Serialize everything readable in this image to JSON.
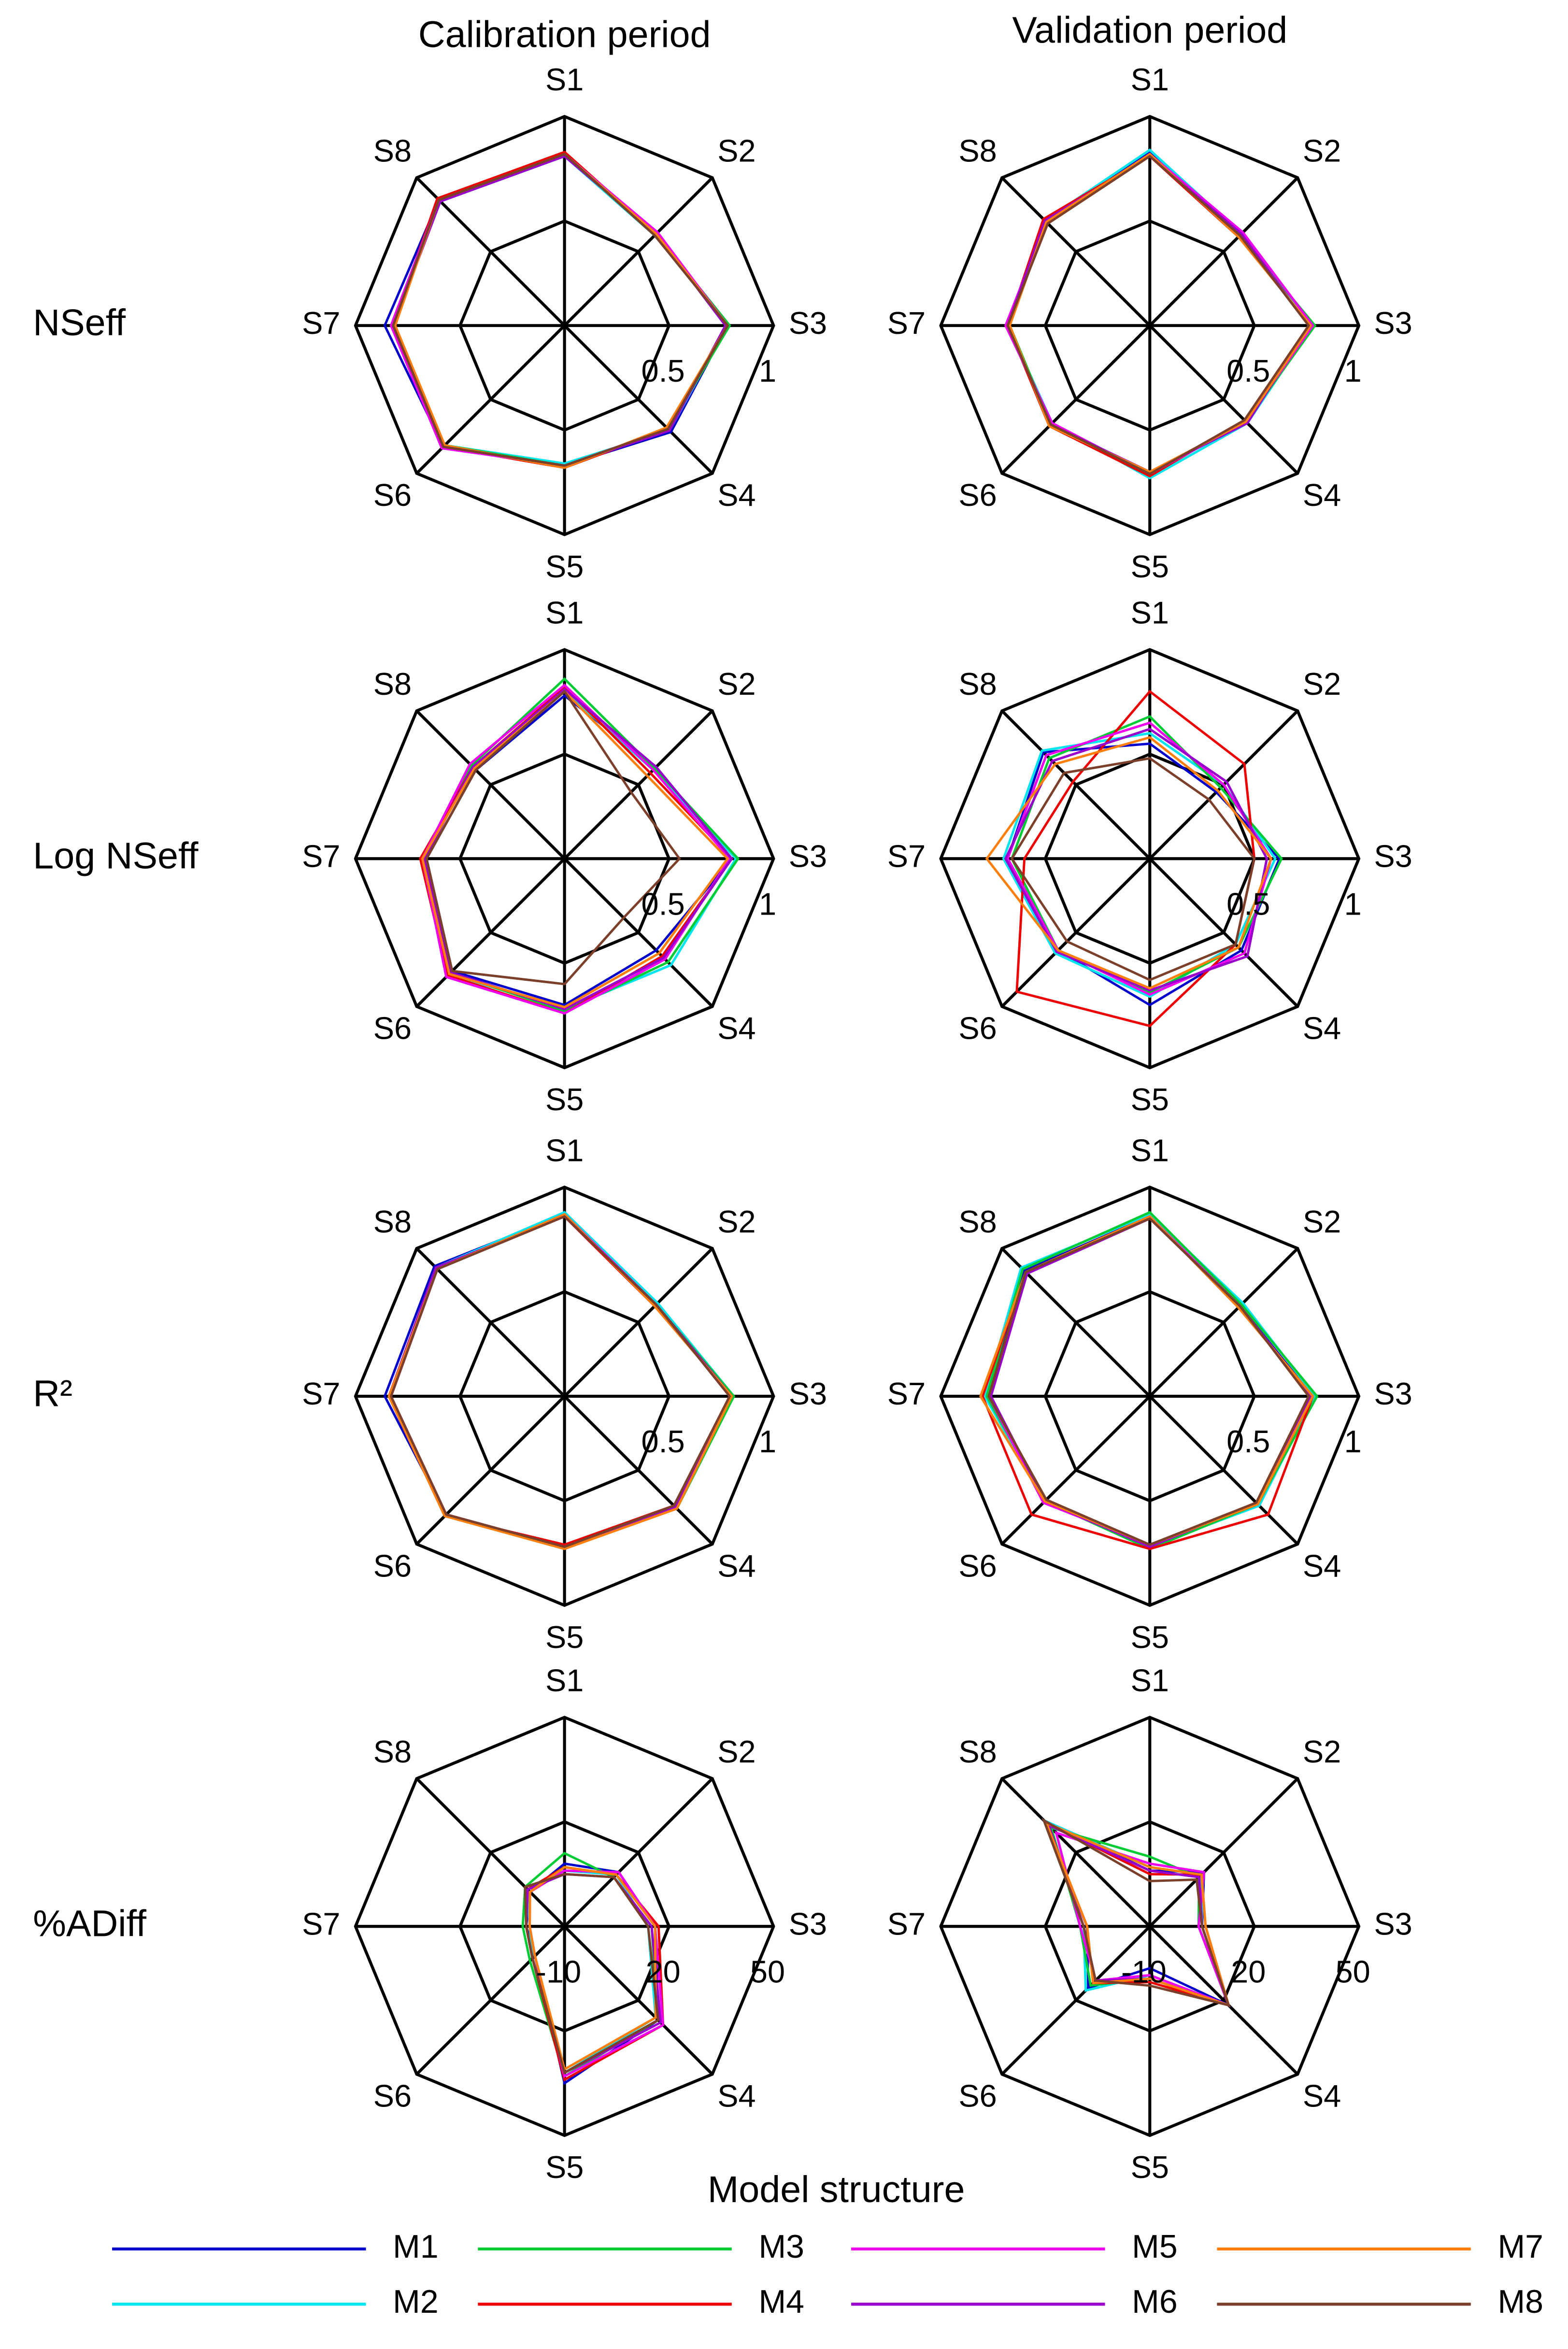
{
  "column_titles": [
    "Calibration period",
    "Validation period"
  ],
  "row_titles": [
    "NSeff",
    "Log NSeff",
    "R²",
    "%ADiff"
  ],
  "legend": {
    "title": "Model structure",
    "entries": [
      {
        "name": "M1",
        "color": "#0000cc"
      },
      {
        "name": "M2",
        "color": "#00e5ee"
      },
      {
        "name": "M3",
        "color": "#00cc33"
      },
      {
        "name": "M4",
        "color": "#ee0000"
      },
      {
        "name": "M5",
        "color": "#ee00ee"
      },
      {
        "name": "M6",
        "color": "#9900cc"
      },
      {
        "name": "M7",
        "color": "#ff7f0e"
      },
      {
        "name": "M8",
        "color": "#7b3f2a"
      }
    ]
  },
  "chart_data": [
    {
      "type": "radar",
      "categories": [
        "S1",
        "S2",
        "S3",
        "S4",
        "S5",
        "S6",
        "S7",
        "S8"
      ],
      "rlim": [
        0,
        1
      ],
      "rticks": [
        0.5,
        1
      ],
      "series": [
        {
          "values": [
            0.82,
            0.62,
            0.78,
            0.72,
            0.67,
            0.82,
            0.86,
            0.85
          ]
        },
        {
          "values": [
            0.81,
            0.61,
            0.78,
            0.71,
            0.66,
            0.81,
            0.83,
            0.84
          ]
        },
        {
          "values": [
            0.82,
            0.62,
            0.79,
            0.7,
            0.67,
            0.81,
            0.82,
            0.85
          ]
        },
        {
          "values": [
            0.83,
            0.62,
            0.78,
            0.7,
            0.68,
            0.82,
            0.82,
            0.86
          ]
        },
        {
          "values": [
            0.82,
            0.63,
            0.78,
            0.7,
            0.67,
            0.83,
            0.83,
            0.85
          ]
        },
        {
          "values": [
            0.81,
            0.62,
            0.77,
            0.71,
            0.67,
            0.82,
            0.82,
            0.84
          ]
        },
        {
          "values": [
            0.82,
            0.62,
            0.78,
            0.69,
            0.68,
            0.81,
            0.81,
            0.85
          ]
        },
        {
          "values": [
            0.82,
            0.61,
            0.78,
            0.7,
            0.67,
            0.82,
            0.82,
            0.85
          ]
        }
      ]
    },
    {
      "type": "radar",
      "categories": [
        "S1",
        "S2",
        "S3",
        "S4",
        "S5",
        "S6",
        "S7",
        "S8"
      ],
      "rlim": [
        0,
        1
      ],
      "rticks": [
        0.5,
        1
      ],
      "series": [
        {
          "values": [
            0.83,
            0.61,
            0.77,
            0.65,
            0.71,
            0.67,
            0.68,
            0.7
          ]
        },
        {
          "values": [
            0.84,
            0.62,
            0.78,
            0.66,
            0.73,
            0.66,
            0.68,
            0.71
          ]
        },
        {
          "values": [
            0.82,
            0.61,
            0.79,
            0.65,
            0.71,
            0.67,
            0.67,
            0.7
          ]
        },
        {
          "values": [
            0.81,
            0.6,
            0.77,
            0.64,
            0.72,
            0.68,
            0.68,
            0.72
          ]
        },
        {
          "values": [
            0.82,
            0.63,
            0.78,
            0.65,
            0.71,
            0.66,
            0.69,
            0.7
          ]
        },
        {
          "values": [
            0.81,
            0.62,
            0.76,
            0.66,
            0.7,
            0.67,
            0.68,
            0.71
          ]
        },
        {
          "values": [
            0.82,
            0.6,
            0.77,
            0.65,
            0.7,
            0.68,
            0.67,
            0.7
          ]
        },
        {
          "values": [
            0.81,
            0.61,
            0.76,
            0.64,
            0.71,
            0.67,
            0.68,
            0.69
          ]
        }
      ]
    },
    {
      "type": "radar",
      "categories": [
        "S1",
        "S2",
        "S3",
        "S4",
        "S5",
        "S6",
        "S7",
        "S8"
      ],
      "rlim": [
        0,
        1
      ],
      "rticks": [
        0.5,
        1
      ],
      "series": [
        {
          "values": [
            0.78,
            0.62,
            0.8,
            0.62,
            0.7,
            0.76,
            0.66,
            0.6
          ]
        },
        {
          "values": [
            0.8,
            0.6,
            0.82,
            0.72,
            0.72,
            0.78,
            0.67,
            0.62
          ]
        },
        {
          "values": [
            0.86,
            0.61,
            0.83,
            0.7,
            0.73,
            0.77,
            0.68,
            0.63
          ]
        },
        {
          "values": [
            0.82,
            0.58,
            0.8,
            0.66,
            0.74,
            0.79,
            0.69,
            0.62
          ]
        },
        {
          "values": [
            0.83,
            0.6,
            0.79,
            0.68,
            0.74,
            0.8,
            0.68,
            0.64
          ]
        },
        {
          "values": [
            0.81,
            0.62,
            0.8,
            0.67,
            0.72,
            0.77,
            0.67,
            0.62
          ]
        },
        {
          "values": [
            0.8,
            0.56,
            0.78,
            0.64,
            0.71,
            0.78,
            0.68,
            0.61
          ]
        },
        {
          "values": [
            0.8,
            0.45,
            0.55,
            0.4,
            0.6,
            0.76,
            0.66,
            0.6
          ]
        }
      ]
    },
    {
      "type": "radar",
      "categories": [
        "S1",
        "S2",
        "S3",
        "S4",
        "S5",
        "S6",
        "S7",
        "S8"
      ],
      "rlim": [
        0,
        1
      ],
      "rticks": [
        0.5,
        1
      ],
      "series": [
        {
          "values": [
            0.55,
            0.45,
            0.62,
            0.62,
            0.7,
            0.62,
            0.68,
            0.72
          ]
        },
        {
          "values": [
            0.6,
            0.5,
            0.6,
            0.58,
            0.66,
            0.64,
            0.7,
            0.73
          ]
        },
        {
          "values": [
            0.68,
            0.48,
            0.63,
            0.6,
            0.64,
            0.62,
            0.66,
            0.68
          ]
        },
        {
          "values": [
            0.8,
            0.64,
            0.5,
            0.58,
            0.8,
            0.9,
            0.6,
            0.52
          ]
        },
        {
          "values": [
            0.65,
            0.5,
            0.58,
            0.64,
            0.65,
            0.62,
            0.68,
            0.7
          ]
        },
        {
          "values": [
            0.62,
            0.52,
            0.56,
            0.66,
            0.63,
            0.63,
            0.69,
            0.66
          ]
        },
        {
          "values": [
            0.58,
            0.46,
            0.58,
            0.6,
            0.62,
            0.62,
            0.78,
            0.64
          ]
        },
        {
          "values": [
            0.48,
            0.4,
            0.5,
            0.58,
            0.58,
            0.56,
            0.66,
            0.58
          ]
        }
      ]
    },
    {
      "type": "radar",
      "categories": [
        "S1",
        "S2",
        "S3",
        "S4",
        "S5",
        "S6",
        "S7",
        "S8"
      ],
      "rlim": [
        0,
        1
      ],
      "rticks": [
        0.5,
        1
      ],
      "series": [
        {
          "values": [
            0.87,
            0.62,
            0.8,
            0.75,
            0.72,
            0.8,
            0.86,
            0.88
          ]
        },
        {
          "values": [
            0.88,
            0.63,
            0.81,
            0.75,
            0.73,
            0.81,
            0.84,
            0.87
          ]
        },
        {
          "values": [
            0.87,
            0.62,
            0.81,
            0.76,
            0.72,
            0.8,
            0.84,
            0.86
          ]
        },
        {
          "values": [
            0.86,
            0.61,
            0.8,
            0.74,
            0.71,
            0.81,
            0.84,
            0.87
          ]
        },
        {
          "values": [
            0.87,
            0.62,
            0.79,
            0.75,
            0.72,
            0.8,
            0.83,
            0.86
          ]
        },
        {
          "values": [
            0.86,
            0.62,
            0.8,
            0.75,
            0.73,
            0.8,
            0.84,
            0.87
          ]
        },
        {
          "values": [
            0.87,
            0.61,
            0.8,
            0.76,
            0.73,
            0.81,
            0.84,
            0.86
          ]
        },
        {
          "values": [
            0.86,
            0.62,
            0.79,
            0.74,
            0.72,
            0.8,
            0.83,
            0.86
          ]
        }
      ]
    },
    {
      "type": "radar",
      "categories": [
        "S1",
        "S2",
        "S3",
        "S4",
        "S5",
        "S6",
        "S7",
        "S8"
      ],
      "rlim": [
        0,
        1
      ],
      "rticks": [
        0.5,
        1
      ],
      "series": [
        {
          "values": [
            0.86,
            0.61,
            0.78,
            0.73,
            0.72,
            0.7,
            0.78,
            0.85
          ]
        },
        {
          "values": [
            0.87,
            0.63,
            0.79,
            0.74,
            0.72,
            0.71,
            0.79,
            0.87
          ]
        },
        {
          "values": [
            0.88,
            0.62,
            0.8,
            0.73,
            0.73,
            0.71,
            0.78,
            0.86
          ]
        },
        {
          "values": [
            0.86,
            0.6,
            0.78,
            0.8,
            0.73,
            0.8,
            0.8,
            0.84
          ]
        },
        {
          "values": [
            0.86,
            0.61,
            0.77,
            0.73,
            0.71,
            0.72,
            0.77,
            0.84
          ]
        },
        {
          "values": [
            0.85,
            0.61,
            0.77,
            0.72,
            0.72,
            0.71,
            0.76,
            0.83
          ]
        },
        {
          "values": [
            0.86,
            0.6,
            0.78,
            0.73,
            0.71,
            0.71,
            0.81,
            0.84
          ]
        },
        {
          "values": [
            0.85,
            0.61,
            0.76,
            0.72,
            0.71,
            0.7,
            0.77,
            0.84
          ]
        }
      ]
    },
    {
      "type": "radar",
      "categories": [
        "S1",
        "S2",
        "S3",
        "S4",
        "S5",
        "S6",
        "S7",
        "S8"
      ],
      "rlim": [
        -10,
        50
      ],
      "rticks": [
        -10,
        20,
        50
      ],
      "series": [
        {
          "values": [
            8,
            12,
            16,
            28,
            35,
            2,
            1,
            4
          ]
        },
        {
          "values": [
            6,
            11,
            14,
            27,
            32,
            3,
            0,
            5
          ]
        },
        {
          "values": [
            11,
            10,
            15,
            28,
            33,
            4,
            2,
            6
          ]
        },
        {
          "values": [
            7,
            11,
            17,
            30,
            34,
            3,
            1,
            5
          ]
        },
        {
          "values": [
            6,
            12,
            16,
            30,
            33,
            2,
            0,
            4
          ]
        },
        {
          "values": [
            5,
            10,
            15,
            29,
            32,
            3,
            1,
            5
          ]
        },
        {
          "values": [
            7,
            11,
            16,
            27,
            31,
            2,
            0,
            4
          ]
        },
        {
          "values": [
            5,
            10,
            14,
            28,
            32,
            3,
            1,
            6
          ]
        }
      ]
    },
    {
      "type": "radar",
      "categories": [
        "S1",
        "S2",
        "S3",
        "S4",
        "S5",
        "S6",
        "S7",
        "S8"
      ],
      "rlim": [
        -10,
        50
      ],
      "rticks": [
        -10,
        20,
        50
      ],
      "series": [
        {
          "values": [
            6,
            12,
            5,
            22,
            2,
            15,
            8,
            33
          ]
        },
        {
          "values": [
            7,
            11,
            5,
            22,
            4,
            16,
            9,
            33
          ]
        },
        {
          "values": [
            10,
            10,
            4,
            22,
            5,
            14,
            10,
            30
          ]
        },
        {
          "values": [
            5,
            11,
            6,
            22,
            6,
            13,
            8,
            32
          ]
        },
        {
          "values": [
            8,
            12,
            4,
            22,
            4,
            12,
            10,
            28
          ]
        },
        {
          "values": [
            6,
            10,
            5,
            22,
            5,
            12,
            9,
            31
          ]
        },
        {
          "values": [
            7,
            11,
            6,
            22,
            5,
            13,
            8,
            32
          ]
        },
        {
          "values": [
            3,
            9,
            5,
            22,
            7,
            12,
            9,
            33
          ]
        }
      ]
    }
  ]
}
